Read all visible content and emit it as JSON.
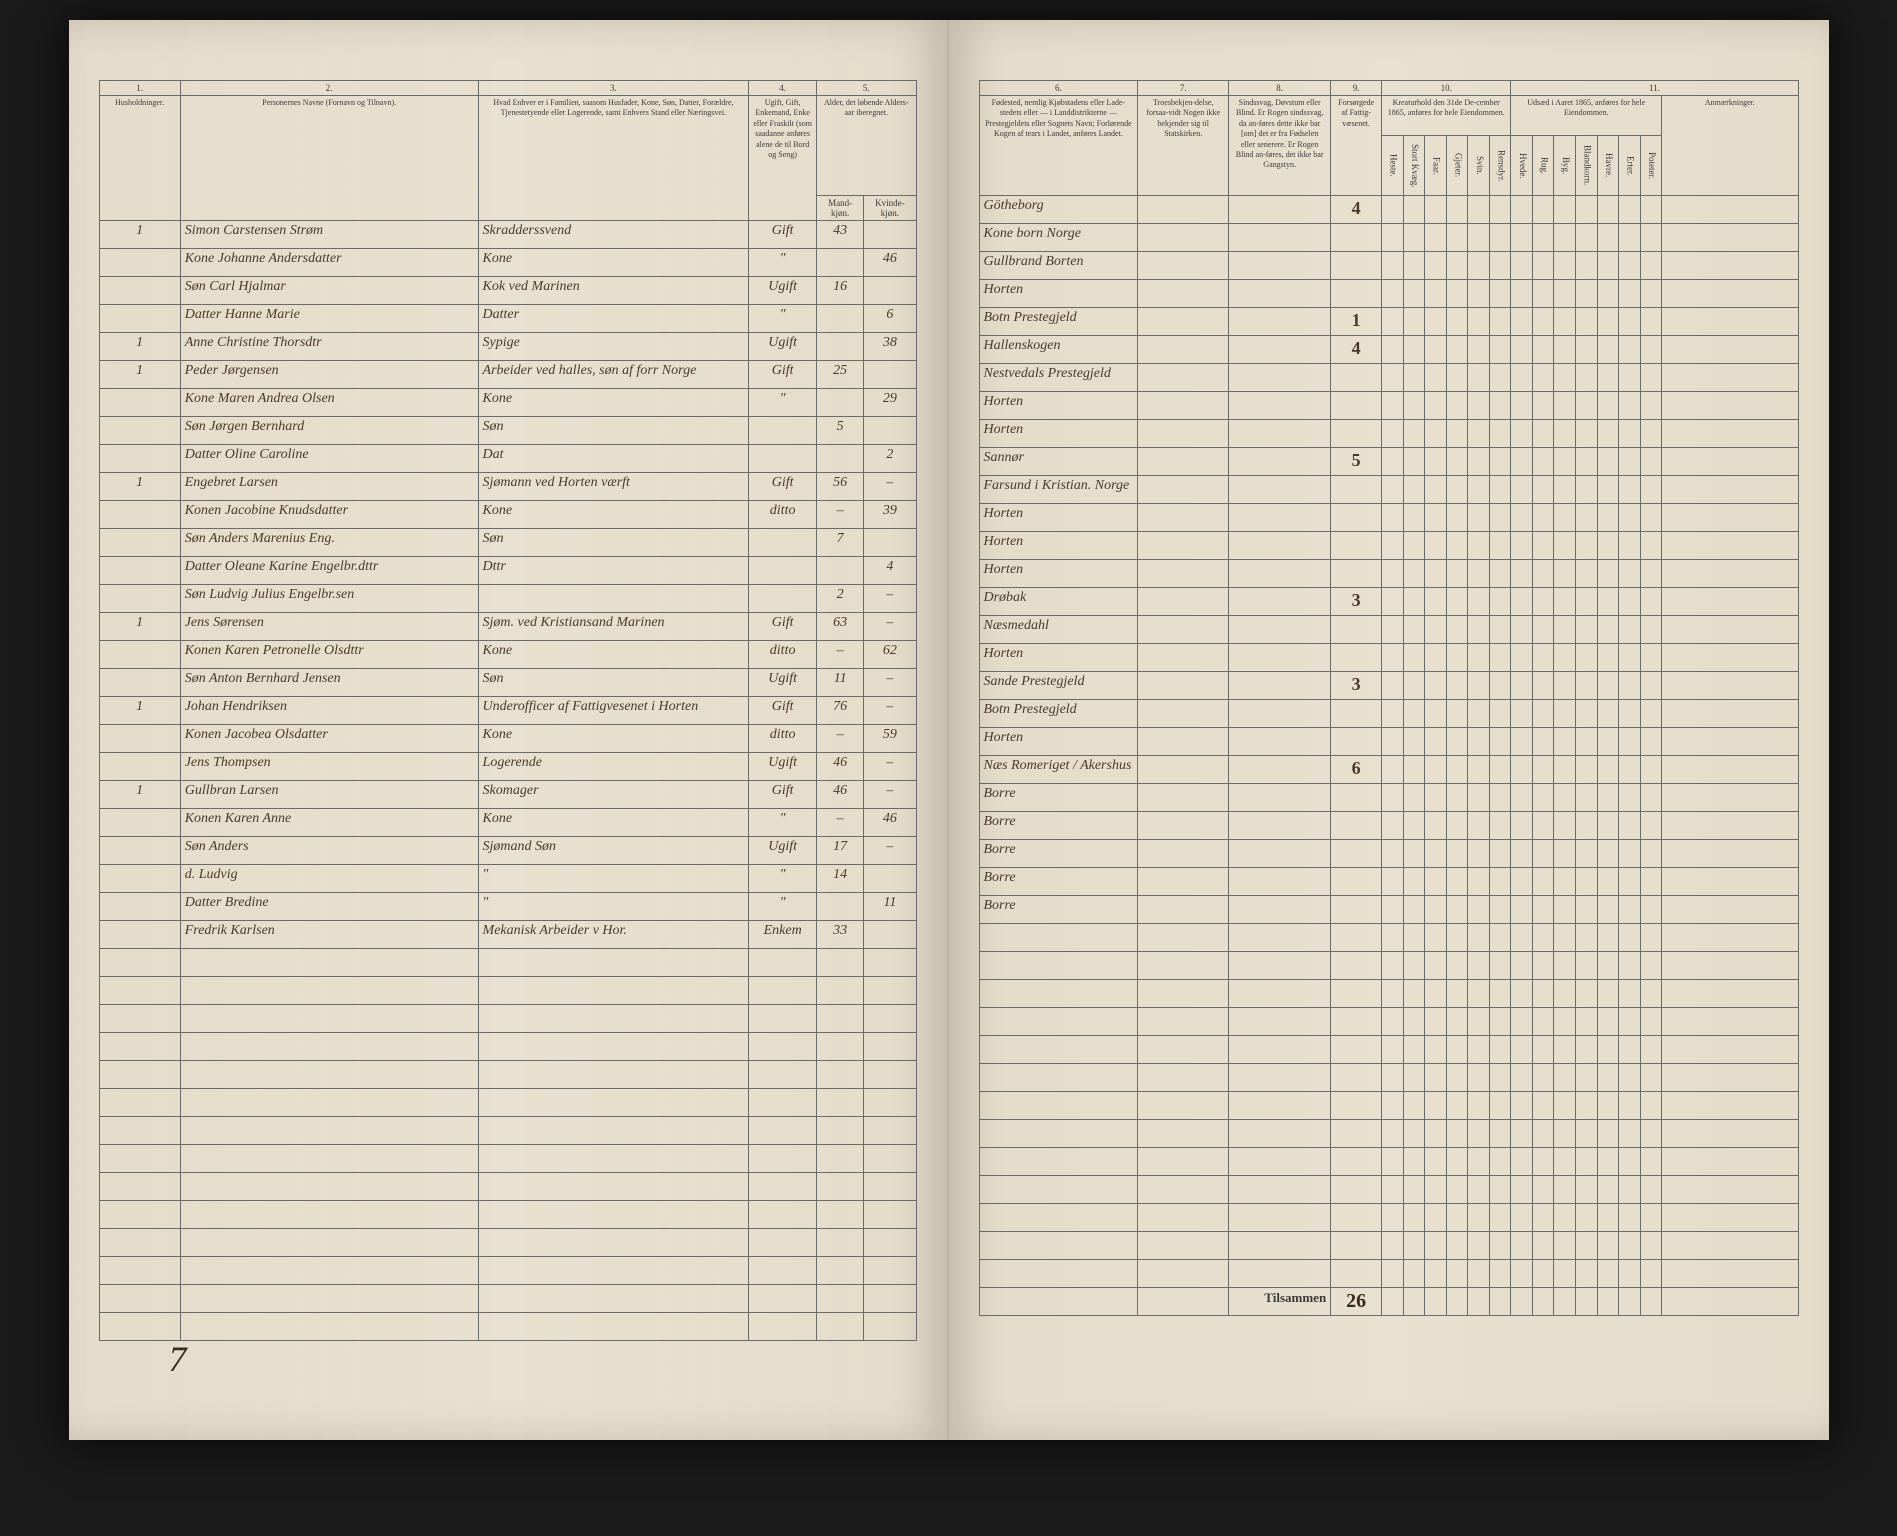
{
  "document_type": "Norwegian Census Register 1865",
  "left_page": {
    "column_numbers": [
      "1.",
      "2.",
      "3.",
      "4.",
      "5."
    ],
    "headers": {
      "col1": "Husholdninger.",
      "col2": "Personernes Navne (Fornavn og Tilnavn).",
      "col3": "Hvad Enhver er i Familien, saasom Husfader, Kone, Søn, Datter, Forældre, Tjenestetyende eller Logerende, samt Enhvers Stand eller Næringsvei.",
      "col4": "Ugift, Gift, Enkemand, Enke eller Fraskilt (som saadanne anføres alene de til Bord og Seng)",
      "col5": "Alder, det løbende Alders-aar iberegnet.",
      "col5a": "Mand-kjøn.",
      "col5b": "Kvinde-kjøn."
    },
    "rows": [
      {
        "hh": "1",
        "name": "Simon Carstensen Strøm",
        "role": "Skradderssvend",
        "status": "Gift",
        "m": "43",
        "f": ""
      },
      {
        "hh": "",
        "name": "Kone Johanne Andersdatter",
        "role": "Kone",
        "status": "\"",
        "m": "",
        "f": "46"
      },
      {
        "hh": "",
        "name": "Søn Carl Hjalmar",
        "role": "Kok ved Marinen",
        "status": "Ugift",
        "m": "16",
        "f": ""
      },
      {
        "hh": "",
        "name": "Datter Hanne Marie",
        "role": "Datter",
        "status": "\"",
        "m": "",
        "f": "6"
      },
      {
        "hh": "1",
        "name": "Anne Christine Thorsdtr",
        "role": "Sypige",
        "status": "Ugift",
        "m": "",
        "f": "38"
      },
      {
        "hh": "1",
        "name": "Peder Jørgensen",
        "role": "Arbeider ved halles, søn af forr Norge",
        "status": "Gift",
        "m": "25",
        "f": ""
      },
      {
        "hh": "",
        "name": "Kone Maren Andrea Olsen",
        "role": "Kone",
        "status": "\"",
        "m": "",
        "f": "29"
      },
      {
        "hh": "",
        "name": "Søn Jørgen Bernhard",
        "role": "Søn",
        "status": "",
        "m": "5",
        "f": ""
      },
      {
        "hh": "",
        "name": "Datter Oline Caroline",
        "role": "Dat",
        "status": "",
        "m": "",
        "f": "2"
      },
      {
        "hh": "1",
        "name": "Engebret Larsen",
        "role": "Sjømann ved Horten værft",
        "status": "Gift",
        "m": "56",
        "f": "–"
      },
      {
        "hh": "",
        "name": "Konen Jacobine Knudsdatter",
        "role": "Kone",
        "status": "ditto",
        "m": "–",
        "f": "39"
      },
      {
        "hh": "",
        "name": "Søn Anders Marenius Eng.",
        "role": "Søn",
        "status": "",
        "m": "7",
        "f": ""
      },
      {
        "hh": "",
        "name": "Datter Oleane Karine Engelbr.dttr",
        "role": "Dttr",
        "status": "",
        "m": "",
        "f": "4"
      },
      {
        "hh": "",
        "name": "Søn Ludvig Julius Engelbr.sen",
        "role": "",
        "status": "",
        "m": "2",
        "f": "–"
      },
      {
        "hh": "1",
        "name": "Jens Sørensen",
        "role": "Sjøm. ved Kristiansand Marinen",
        "status": "Gift",
        "m": "63",
        "f": "–"
      },
      {
        "hh": "",
        "name": "Konen Karen Petronelle Olsdttr",
        "role": "Kone",
        "status": "ditto",
        "m": "–",
        "f": "62"
      },
      {
        "hh": "",
        "name": "Søn Anton Bernhard Jensen",
        "role": "Søn",
        "status": "Ugift",
        "m": "11",
        "f": "–"
      },
      {
        "hh": "1",
        "name": "Johan Hendriksen",
        "role": "Underofficer af Fattigvesenet i Horten",
        "status": "Gift",
        "m": "76",
        "f": "–"
      },
      {
        "hh": "",
        "name": "Konen Jacobea Olsdatter",
        "role": "Kone",
        "status": "ditto",
        "m": "–",
        "f": "59"
      },
      {
        "hh": "",
        "name": "Jens Thompsen",
        "role": "Logerende",
        "status": "Ugift",
        "m": "46",
        "f": "–"
      },
      {
        "hh": "1",
        "name": "Gullbran Larsen",
        "role": "Skomager",
        "status": "Gift",
        "m": "46",
        "f": "–"
      },
      {
        "hh": "",
        "name": "Konen Karen Anne",
        "role": "Kone",
        "status": "\"",
        "m": "–",
        "f": "46"
      },
      {
        "hh": "",
        "name": "Søn Anders",
        "role": "Sjømand  Søn",
        "status": "Ugift",
        "m": "17",
        "f": "–"
      },
      {
        "hh": "",
        "name": "d. Ludvig",
        "role": "\"",
        "status": "\"",
        "m": "14",
        "f": ""
      },
      {
        "hh": "",
        "name": "Datter Bredine",
        "role": "\"",
        "status": "\"",
        "m": "",
        "f": "11"
      },
      {
        "hh": "",
        "name": "Fredrik Karlsen",
        "role": "Mekanisk Arbeider v Hor.",
        "status": "Enkem",
        "m": "33",
        "f": ""
      }
    ],
    "page_number": "7"
  },
  "right_page": {
    "column_numbers": [
      "6.",
      "7.",
      "8.",
      "9.",
      "10.",
      "11."
    ],
    "headers": {
      "col6": "Fødested, nemlig Kjøbstadens eller Lade-stedets eller — i Landdistrikterne — Prestegjeldets eller Sognets Navn; Forlørende Kogen af tears i Landet, anføres Landet.",
      "col7": "Troesbekjen-delse, forsaa-vidt Nogen ikke bekjender sig til Statskirken.",
      "col8": "Sindssvag, Døvstum eller Blind. Er Rogen sindssvag, da an-føres dette ikke bar [om] det er fra Fødselen eller senerere. Er Rogen Blind an-føres, det ikke bar Gangstyn.",
      "col9": "Forsørgede af Fattig-væsenet.",
      "col10": "Kreaturhold den 31de De-cember 1865, anføres for hele Eiendommen.",
      "col10_subs": [
        "Heste.",
        "Stort Kvæg.",
        "Faar.",
        "Gjeter.",
        "Svin.",
        "Rensdyr."
      ],
      "col11": "Udsæd i Aaret 1865, anføres for hele Eiendommen.",
      "col11_subs": [
        "Hvede.",
        "Rug.",
        "Byg.",
        "Blandkorn.",
        "Havre.",
        "Erter.",
        "Poteter."
      ],
      "col11_last": "Anmærkninger."
    },
    "rows": [
      {
        "place": "Götheborg",
        "c9": "4"
      },
      {
        "place": "Kone born Norge",
        "c9": ""
      },
      {
        "place": "Gullbrand Borten",
        "c9": ""
      },
      {
        "place": "Horten",
        "c9": ""
      },
      {
        "place": "Botn Prestegjeld",
        "c9": "1"
      },
      {
        "place": "Hallenskogen",
        "c9": "4"
      },
      {
        "place": "Nestvedals Prestegjeld",
        "c9": ""
      },
      {
        "place": "Horten",
        "c9": ""
      },
      {
        "place": "Horten",
        "c9": ""
      },
      {
        "place": "Sannør",
        "c9": "5"
      },
      {
        "place": "Farsund i Kristian. Norge",
        "c9": ""
      },
      {
        "place": "Horten",
        "c9": ""
      },
      {
        "place": "Horten",
        "c9": ""
      },
      {
        "place": "Horten",
        "c9": ""
      },
      {
        "place": "Drøbak",
        "c9": "3"
      },
      {
        "place": "Næsmedahl",
        "c9": ""
      },
      {
        "place": "Horten",
        "c9": ""
      },
      {
        "place": "Sande Prestegjeld",
        "c9": "3"
      },
      {
        "place": "Botn Prestegjeld",
        "c9": ""
      },
      {
        "place": "Horten",
        "c9": ""
      },
      {
        "place": "Næs Romeriget / Akershus",
        "c9": "6"
      },
      {
        "place": "Borre",
        "c9": ""
      },
      {
        "place": "Borre",
        "c9": ""
      },
      {
        "place": "Borre",
        "c9": ""
      },
      {
        "place": "Borre",
        "c9": ""
      },
      {
        "place": "Borre",
        "c9": ""
      }
    ],
    "sum_label": "Tilsammen",
    "sum_value": "26"
  },
  "styling": {
    "page_bg": "#e8e0d0",
    "border_color": "#6a6a6a",
    "ink_color": "#3a2a1a",
    "print_color": "#3a3a3a",
    "book_shadow": "#1a1a1a"
  }
}
